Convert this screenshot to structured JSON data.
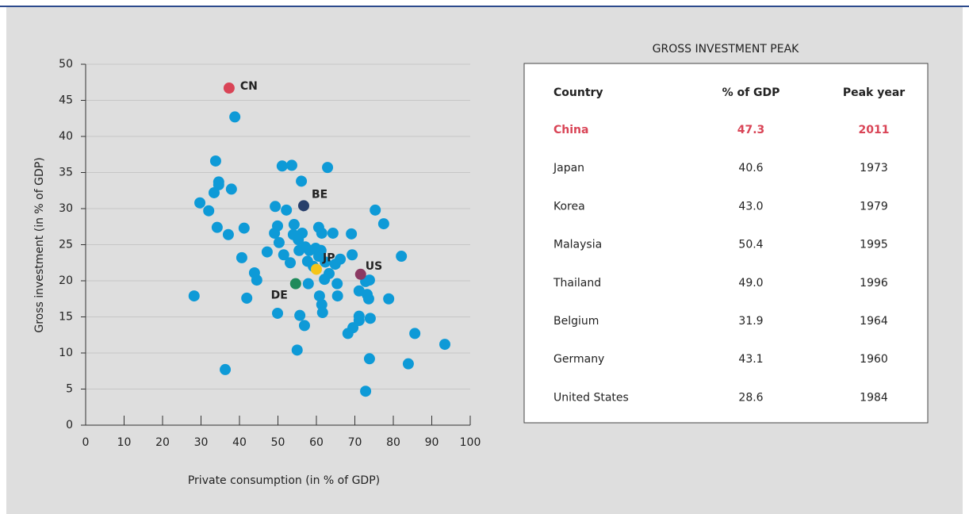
{
  "chart_data": {
    "type": "scatter",
    "xlabel": "Private consumption (in % of GDP)",
    "ylabel": "Gross investment (in % of GDP)",
    "xlim": [
      0,
      100
    ],
    "ylim": [
      0,
      50
    ],
    "xticks": [
      0,
      10,
      20,
      30,
      40,
      50,
      60,
      70,
      80,
      90,
      100
    ],
    "yticks": [
      0,
      5,
      10,
      15,
      20,
      25,
      30,
      35,
      40,
      45,
      50
    ],
    "grid": true,
    "series": [
      {
        "color": "#0e9ad7",
        "x": [
          38.8,
          33.8,
          34.6,
          34.6,
          33.4,
          37.9,
          29.7,
          32.0,
          34.2,
          37.1,
          41.2,
          40.6,
          43.9,
          44.5,
          41.9,
          28.2,
          36.3,
          51.1,
          53.6,
          56.1,
          62.9,
          49.3,
          52.2,
          49.9,
          49.1,
          54.2,
          54.0,
          56.3,
          55.3,
          50.3,
          47.2,
          51.5,
          53.2,
          55.5,
          57.1,
          58.2,
          59.8,
          60.6,
          61.4,
          64.3,
          61.2,
          57.7,
          59.2,
          60.6,
          62.3,
          63.3,
          64.9,
          66.2,
          69.3,
          69.1,
          75.3,
          77.5,
          82.1,
          57.9,
          62.1,
          65.4,
          60.8,
          65.5,
          61.4,
          61.6,
          55.7,
          49.9,
          56.9,
          55.0,
          71.1,
          73.2,
          73.6,
          72.8,
          73.8,
          78.8,
          71.1,
          71.1,
          74.0,
          69.5,
          68.2,
          85.6,
          93.4,
          83.9,
          73.8,
          72.8
        ],
        "values": [
          42.7,
          36.6,
          33.7,
          33.3,
          32.2,
          32.7,
          30.8,
          29.7,
          27.4,
          26.4,
          27.3,
          23.2,
          21.1,
          20.1,
          17.6,
          17.9,
          7.7,
          35.9,
          36.0,
          33.8,
          35.7,
          30.3,
          29.8,
          27.6,
          26.6,
          27.8,
          26.4,
          26.6,
          25.7,
          25.3,
          24.0,
          23.6,
          22.5,
          24.2,
          24.7,
          24.2,
          24.5,
          27.4,
          26.6,
          26.6,
          24.2,
          22.7,
          22.0,
          23.4,
          22.6,
          21.0,
          22.3,
          23.0,
          23.6,
          26.5,
          29.8,
          27.9,
          23.4,
          19.6,
          20.2,
          19.6,
          17.9,
          17.9,
          16.7,
          15.6,
          15.2,
          15.5,
          13.8,
          10.4,
          18.6,
          18.1,
          17.5,
          19.9,
          20.1,
          17.5,
          15.1,
          14.5,
          14.8,
          13.5,
          12.7,
          12.7,
          11.2,
          8.5,
          9.2,
          4.7
        ]
      },
      {
        "name": "CN",
        "color": "#d94456",
        "x": [
          37.3
        ],
        "values": [
          46.7
        ]
      },
      {
        "name": "BE",
        "color": "#283f6b",
        "x": [
          56.7
        ],
        "values": [
          30.4
        ]
      },
      {
        "name": "JP",
        "color": "#f5c518",
        "x": [
          60.0
        ],
        "values": [
          21.6
        ]
      },
      {
        "name": "US",
        "color": "#8b3a62",
        "x": [
          71.5
        ],
        "values": [
          20.9
        ]
      },
      {
        "name": "DE",
        "color": "#1e8a5a",
        "x": [
          54.6
        ],
        "values": [
          19.6
        ]
      }
    ]
  },
  "table": {
    "title": "GROSS INVESTMENT PEAK",
    "header": [
      "Country",
      "% of GDP",
      "Peak year"
    ],
    "highlight_row": 0,
    "highlight_color": "#d94456",
    "rows": [
      [
        "China",
        "47.3",
        "2011"
      ],
      [
        "Japan",
        "40.6",
        "1973"
      ],
      [
        "Korea",
        "43.0",
        "1979"
      ],
      [
        "Malaysia",
        "50.4",
        "1995"
      ],
      [
        "Thailand",
        "49.0",
        "1996"
      ],
      [
        "Belgium",
        "31.9",
        "1964"
      ],
      [
        "Germany",
        "43.1",
        "1960"
      ],
      [
        "United States",
        "28.6",
        "1984"
      ]
    ]
  }
}
